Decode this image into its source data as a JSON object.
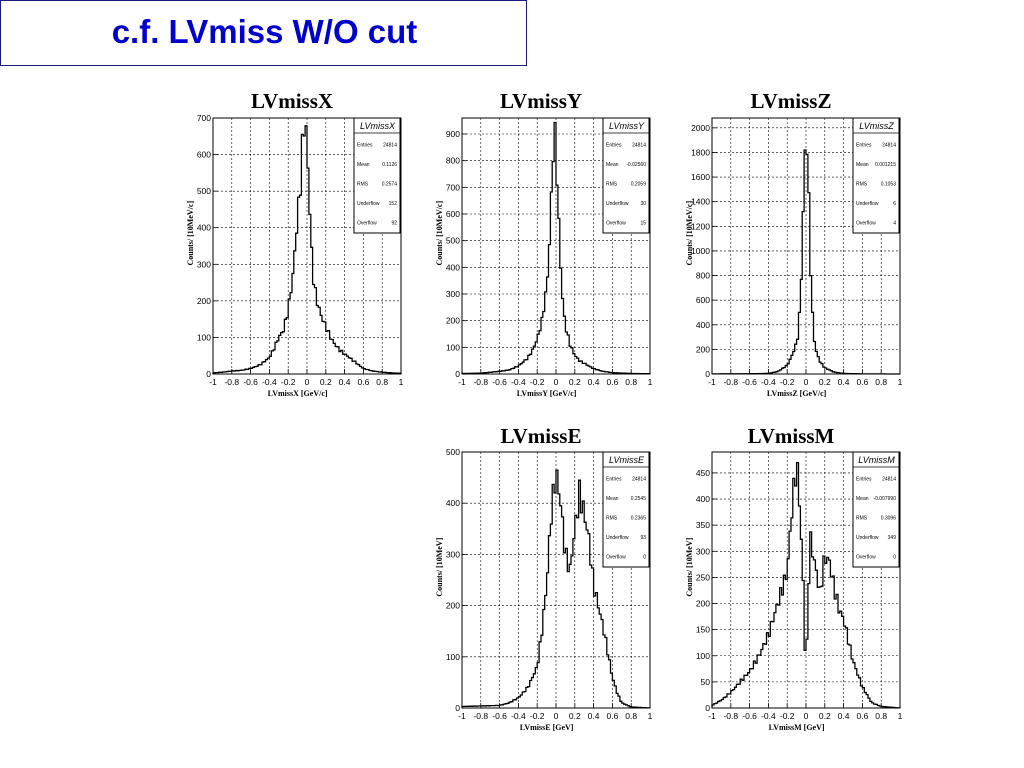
{
  "slide": {
    "title": "c.f. LVmiss W/O cut"
  },
  "chart_data": [
    {
      "type": "histogram",
      "title": "LVmissX",
      "xlabel": "LVmissX [GeV/c]",
      "ylabel": "Counts/ [10MeV/c]",
      "xlim": [
        -1,
        1
      ],
      "ylim": [
        0,
        700
      ],
      "x_ticks": [
        "-1",
        "-0.8",
        "-0.6",
        "-0.4",
        "-0.2",
        "0",
        "0.2",
        "0.4",
        "0.6",
        "0.8",
        "1"
      ],
      "y_ticks": [
        0,
        100,
        200,
        300,
        400,
        500,
        600,
        700
      ],
      "grid": true,
      "stats": {
        "name": "LVmissX",
        "rows": [
          {
            "label": "Entries",
            "value": "24814"
          },
          {
            "label": "Mean",
            "value": "0.1126"
          },
          {
            "label": "RMS",
            "value": "0.2574"
          },
          {
            "label": "Underflow",
            "value": "152"
          },
          {
            "label": "Overflow",
            "value": "92"
          }
        ]
      },
      "x": [
        -1.0,
        -0.9,
        -0.8,
        -0.7,
        -0.6,
        -0.5,
        -0.4,
        -0.35,
        -0.3,
        -0.25,
        -0.2,
        -0.15,
        -0.1,
        -0.07,
        -0.05,
        -0.03,
        -0.01,
        0.0,
        0.01,
        0.03,
        0.05,
        0.07,
        0.1,
        0.15,
        0.2,
        0.25,
        0.3,
        0.35,
        0.4,
        0.5,
        0.6,
        0.7,
        0.8,
        0.9,
        1.0
      ],
      "values": [
        3,
        5,
        8,
        10,
        15,
        25,
        45,
        70,
        100,
        120,
        175,
        270,
        430,
        520,
        620,
        680,
        665,
        640,
        560,
        450,
        330,
        260,
        205,
        160,
        130,
        100,
        80,
        65,
        55,
        35,
        15,
        8,
        5,
        3,
        2
      ]
    },
    {
      "type": "histogram",
      "title": "LVmissY",
      "xlabel": "LVmissY [GeV/c]",
      "ylabel": "Counts/ [10MeV/c]",
      "xlim": [
        -1,
        1
      ],
      "ylim": [
        0,
        960
      ],
      "x_ticks": [
        "-1",
        "-0.8",
        "-0.6",
        "-0.4",
        "-0.2",
        "0",
        "0.2",
        "0.4",
        "0.6",
        "0.8",
        "1"
      ],
      "y_ticks": [
        0,
        100,
        200,
        300,
        400,
        500,
        600,
        700,
        800,
        900
      ],
      "grid": true,
      "stats": {
        "name": "LVmissY",
        "rows": [
          {
            "label": "Entries",
            "value": "24814"
          },
          {
            "label": "Mean",
            "value": "-0.02560"
          },
          {
            "label": "RMS",
            "value": "0.2059"
          },
          {
            "label": "Underflow",
            "value": "30"
          },
          {
            "label": "Overflow",
            "value": "15"
          }
        ]
      },
      "x": [
        -1.0,
        -0.8,
        -0.6,
        -0.5,
        -0.4,
        -0.3,
        -0.25,
        -0.2,
        -0.15,
        -0.1,
        -0.08,
        -0.06,
        -0.04,
        -0.02,
        0.0,
        0.02,
        0.04,
        0.06,
        0.08,
        0.1,
        0.15,
        0.2,
        0.25,
        0.3,
        0.4,
        0.5,
        0.6,
        0.8,
        1.0
      ],
      "values": [
        2,
        3,
        10,
        15,
        30,
        60,
        90,
        130,
        200,
        320,
        420,
        560,
        760,
        920,
        860,
        640,
        480,
        330,
        240,
        180,
        110,
        70,
        50,
        40,
        20,
        10,
        5,
        2,
        1
      ]
    },
    {
      "type": "histogram",
      "title": "LVmissZ",
      "xlabel": "LVmissZ [GeV/c]",
      "ylabel": "Counts/ [10MeV/c]",
      "xlim": [
        -1,
        1
      ],
      "ylim": [
        0,
        2080
      ],
      "x_ticks": [
        "-1",
        "-0.8",
        "-0.6",
        "-0.4",
        "-0.2",
        "0",
        "0.2",
        "0.4",
        "0.6",
        "0.8",
        "1"
      ],
      "y_ticks": [
        0,
        200,
        400,
        600,
        800,
        1000,
        1200,
        1400,
        1600,
        1800,
        2000
      ],
      "grid": true,
      "stats": {
        "name": "LVmissZ",
        "rows": [
          {
            "label": "Entries",
            "value": "24814"
          },
          {
            "label": "Mean",
            "value": "0.001215"
          },
          {
            "label": "RMS",
            "value": "0.1053"
          },
          {
            "label": "Underflow",
            "value": "6"
          },
          {
            "label": "Overflow",
            "value": "4"
          }
        ]
      },
      "x": [
        -1.0,
        -0.6,
        -0.4,
        -0.3,
        -0.2,
        -0.15,
        -0.1,
        -0.08,
        -0.06,
        -0.04,
        -0.02,
        0.0,
        0.02,
        0.04,
        0.06,
        0.08,
        0.1,
        0.15,
        0.2,
        0.3,
        0.4,
        0.6,
        1.0
      ],
      "values": [
        1,
        2,
        5,
        20,
        70,
        150,
        250,
        350,
        600,
        1000,
        1600,
        2000,
        1700,
        1100,
        600,
        350,
        200,
        100,
        50,
        15,
        5,
        1,
        0
      ]
    },
    {
      "type": "histogram",
      "title": "LVmissE",
      "xlabel": "LVmissE [GeV]",
      "ylabel": "Counts/ [10MeV]",
      "xlim": [
        -1,
        1
      ],
      "ylim": [
        0,
        500
      ],
      "x_ticks": [
        "-1",
        "-0.8",
        "-0.6",
        "-0.4",
        "-0.2",
        "0",
        "0.2",
        "0.4",
        "0.6",
        "0.8",
        "1"
      ],
      "y_ticks": [
        0,
        100,
        200,
        300,
        400,
        500
      ],
      "grid": true,
      "stats": {
        "name": "LVmissE",
        "rows": [
          {
            "label": "Entries",
            "value": "24814"
          },
          {
            "label": "Mean",
            "value": "0.2545"
          },
          {
            "label": "RMS",
            "value": "0.2365"
          },
          {
            "label": "Underflow",
            "value": "93"
          },
          {
            "label": "Overflow",
            "value": "0"
          }
        ]
      },
      "x": [
        -1.0,
        -0.6,
        -0.5,
        -0.4,
        -0.3,
        -0.2,
        -0.15,
        -0.1,
        -0.05,
        0.0,
        0.05,
        0.1,
        0.15,
        0.2,
        0.25,
        0.3,
        0.35,
        0.4,
        0.45,
        0.5,
        0.55,
        0.6,
        0.65,
        0.7,
        0.8,
        1.0
      ],
      "values": [
        3,
        5,
        10,
        20,
        40,
        80,
        150,
        240,
        380,
        460,
        400,
        300,
        270,
        350,
        420,
        380,
        330,
        240,
        200,
        160,
        110,
        60,
        30,
        10,
        2,
        0
      ]
    },
    {
      "type": "histogram",
      "title": "LVmissM",
      "xlabel": "LVmissM [GeV]",
      "ylabel": "Counts/ [10MeV]",
      "xlim": [
        -1,
        1
      ],
      "ylim": [
        0,
        490
      ],
      "x_ticks": [
        "-1",
        "-0.8",
        "-0.6",
        "-0.4",
        "-0.2",
        "0",
        "0.2",
        "0.4",
        "0.6",
        "0.8",
        "1"
      ],
      "y_ticks": [
        0,
        50,
        100,
        150,
        200,
        250,
        300,
        350,
        400,
        450
      ],
      "grid": true,
      "stats": {
        "name": "LVmissM",
        "rows": [
          {
            "label": "Entries",
            "value": "24814"
          },
          {
            "label": "Mean",
            "value": "-0.007990"
          },
          {
            "label": "RMS",
            "value": "0.3096"
          },
          {
            "label": "Underflow",
            "value": "349"
          },
          {
            "label": "Overflow",
            "value": "0"
          }
        ]
      },
      "x": [
        -1.0,
        -0.9,
        -0.8,
        -0.7,
        -0.6,
        -0.5,
        -0.4,
        -0.3,
        -0.2,
        -0.15,
        -0.1,
        -0.07,
        -0.04,
        -0.02,
        0.0,
        0.02,
        0.05,
        0.1,
        0.15,
        0.2,
        0.25,
        0.3,
        0.35,
        0.4,
        0.45,
        0.5,
        0.6,
        0.7,
        0.8,
        1.0
      ],
      "values": [
        5,
        15,
        30,
        50,
        70,
        100,
        140,
        200,
        260,
        380,
        470,
        400,
        280,
        200,
        30,
        220,
        320,
        270,
        220,
        290,
        280,
        230,
        190,
        170,
        130,
        90,
        40,
        10,
        3,
        0
      ]
    }
  ]
}
